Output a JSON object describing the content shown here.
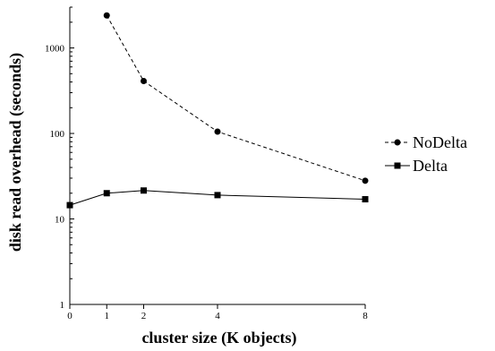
{
  "chart_data": {
    "type": "line",
    "xlabel": "cluster size (K objects)",
    "ylabel": "disk read overhead (seconds)",
    "xlim": [
      0,
      8
    ],
    "ylim": [
      1,
      3000
    ],
    "yscale": "log",
    "x_ticks": [
      0,
      1,
      2,
      4,
      8
    ],
    "x_tick_labels": [
      "0",
      "1",
      "2",
      "4",
      "8"
    ],
    "y_ticks": [
      1,
      10,
      100,
      1000
    ],
    "y_tick_labels": [
      "1",
      "10",
      "100",
      "1000"
    ],
    "grid": false,
    "legend_position": "right",
    "series": [
      {
        "name": "NoDelta",
        "line_style": "dashed",
        "marker": "circle",
        "color": "#000000",
        "x": [
          1,
          2,
          4,
          8
        ],
        "values": [
          2400,
          410,
          105,
          28
        ]
      },
      {
        "name": "Delta",
        "line_style": "solid",
        "marker": "square",
        "color": "#000000",
        "x": [
          0,
          1,
          2,
          4,
          8
        ],
        "values": [
          14.5,
          20,
          21.5,
          19,
          17
        ]
      }
    ]
  }
}
